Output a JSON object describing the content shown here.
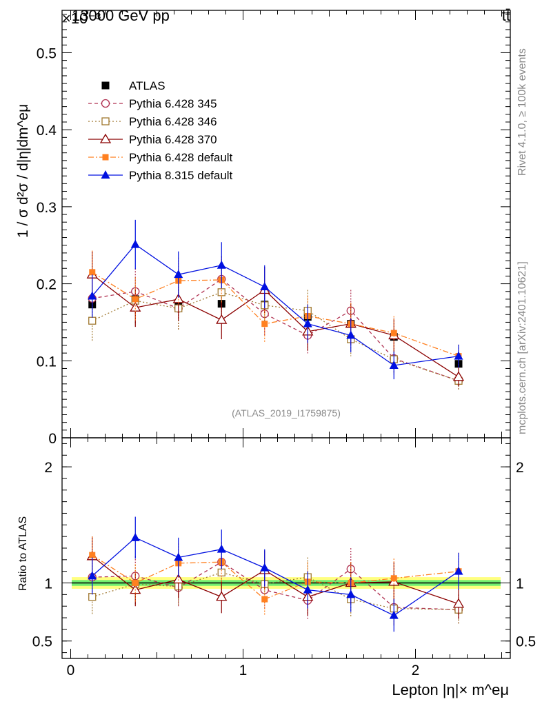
{
  "header": {
    "energy_label": "13000 GeV pp",
    "process_label": "tt̄",
    "exponent_label": "×10⁻³"
  },
  "side_labels": {
    "rivet": "Rivet 4.1.0, ≥ 100k events",
    "mcplots": "mcplots.cern.ch [arXiv:2401.10621]"
  },
  "analysis_label": "(ATLAS_2019_I1759875)",
  "colors": {
    "atlas": "#000000",
    "p345": "#b03050",
    "p346": "#a07830",
    "p370": "#8b0000",
    "p6def": "#ff8020",
    "p8def": "#0010e0",
    "band_outer": "#ffff80",
    "band_inner": "#70ee70"
  },
  "chart_data": [
    {
      "type": "scatter",
      "panel": "main",
      "title": "13000 GeV pp",
      "xlabel": "Lepton |η|× m^eμ",
      "ylabel": "1 / σ  d²σ / d|η|dm^eμ",
      "xlim": [
        -0.05,
        2.55
      ],
      "ylim": [
        0,
        0.555
      ],
      "y_multiplier_label": "×10⁻³",
      "x_ticks": [
        0,
        1,
        2
      ],
      "y_ticks": [
        0.1,
        0.2,
        0.3,
        0.4,
        0.5
      ],
      "y_tick_labels": [
        "0.1",
        "0.2",
        "0.3",
        "0.4",
        "0.5"
      ],
      "y_zero_label": "0",
      "x_tick_labels": [
        "0",
        "1",
        "2"
      ],
      "x": [
        0.125,
        0.375,
        0.625,
        0.875,
        1.125,
        1.375,
        1.625,
        1.875,
        2.25
      ],
      "legend_position": "top-left",
      "series": [
        {
          "name": "ATLAS",
          "key": "atlas",
          "marker": "square-filled",
          "line": "none",
          "values": [
            0.173,
            0.18,
            0.174,
            0.174,
            0.173,
            0.157,
            0.148,
            0.131,
            0.096
          ],
          "errors": [
            0.004,
            0.004,
            0.004,
            0.004,
            0.004,
            0.004,
            0.004,
            0.004,
            0.004
          ]
        },
        {
          "name": "Pythia 6.428 345",
          "key": "p345",
          "marker": "circle-open",
          "line": "dashed",
          "values": [
            0.181,
            0.19,
            0.168,
            0.206,
            0.161,
            0.133,
            0.165,
            0.103,
            0.074
          ],
          "errors": [
            0.03,
            0.03,
            0.028,
            0.03,
            0.028,
            0.025,
            0.027,
            0.02,
            0.012
          ]
        },
        {
          "name": "Pythia 6.428 346",
          "key": "p346",
          "marker": "square-open",
          "line": "dotted",
          "values": [
            0.152,
            0.178,
            0.168,
            0.189,
            0.172,
            0.165,
            0.128,
            0.102,
            0.074
          ],
          "errors": [
            0.026,
            0.03,
            0.028,
            0.03,
            0.028,
            0.027,
            0.022,
            0.02,
            0.012
          ]
        },
        {
          "name": "Pythia 6.428 370",
          "key": "p370",
          "marker": "triangle-open",
          "line": "solid",
          "values": [
            0.212,
            0.169,
            0.18,
            0.153,
            0.192,
            0.138,
            0.148,
            0.133,
            0.079
          ],
          "errors": [
            0.03,
            0.025,
            0.028,
            0.025,
            0.03,
            0.025,
            0.027,
            0.022,
            0.012
          ]
        },
        {
          "name": "Pythia 6.428 default",
          "key": "p6def",
          "marker": "square-filled-small",
          "line": "dashdot",
          "values": [
            0.215,
            0.18,
            0.204,
            0.205,
            0.148,
            0.158,
            0.148,
            0.136,
            0.106
          ],
          "errors": [
            0.028,
            0.028,
            0.03,
            0.03,
            0.025,
            0.026,
            0.027,
            0.022,
            0.015
          ]
        },
        {
          "name": "Pythia 8.315 default",
          "key": "p8def",
          "marker": "triangle-filled",
          "line": "solid",
          "values": [
            0.184,
            0.251,
            0.212,
            0.224,
            0.196,
            0.148,
            0.133,
            0.094,
            0.106
          ],
          "errors": [
            0.028,
            0.032,
            0.03,
            0.03,
            0.028,
            0.025,
            0.022,
            0.018,
            0.015
          ]
        }
      ]
    },
    {
      "type": "scatter",
      "panel": "ratio",
      "ylabel": "Ratio to ATLAS",
      "xlabel": "Lepton |η|× m^eμ",
      "xlim": [
        -0.05,
        2.55
      ],
      "ylim": [
        0.35,
        2.25
      ],
      "y_ticks": [
        0.5,
        1,
        2
      ],
      "y_tick_labels": [
        "0.5",
        "1",
        "2"
      ],
      "x_ticks": [
        0,
        1,
        2
      ],
      "x_tick_labels": [
        "0",
        "1",
        "2"
      ],
      "band_outer": [
        0.95,
        1.05
      ],
      "band_inner": [
        0.975,
        1.025
      ],
      "x": [
        0.125,
        0.375,
        0.625,
        0.875,
        1.125,
        1.375,
        1.625,
        1.875,
        2.25
      ],
      "series": [
        {
          "name": "Pythia 6.428 345",
          "key": "p345",
          "marker": "circle-open",
          "line": "dashed",
          "values": [
            1.05,
            1.06,
            0.96,
            1.18,
            0.94,
            0.85,
            1.12,
            0.79,
            0.77
          ],
          "errors": [
            0.17,
            0.17,
            0.16,
            0.17,
            0.16,
            0.16,
            0.18,
            0.15,
            0.13
          ]
        },
        {
          "name": "Pythia 6.428 346",
          "key": "p346",
          "marker": "square-open",
          "line": "dotted",
          "values": [
            0.88,
            0.99,
            0.97,
            1.09,
            0.99,
            1.05,
            0.86,
            0.78,
            0.77
          ],
          "errors": [
            0.15,
            0.17,
            0.16,
            0.17,
            0.16,
            0.17,
            0.15,
            0.15,
            0.13
          ]
        },
        {
          "name": "Pythia 6.428 370",
          "key": "p370",
          "marker": "triangle-open",
          "line": "solid",
          "values": [
            1.23,
            0.94,
            1.03,
            0.88,
            1.11,
            0.88,
            1.0,
            1.01,
            0.82
          ],
          "errors": [
            0.17,
            0.14,
            0.16,
            0.14,
            0.17,
            0.16,
            0.18,
            0.17,
            0.13
          ]
        },
        {
          "name": "Pythia 6.428 default",
          "key": "p6def",
          "marker": "square-filled-small",
          "line": "dashdot",
          "values": [
            1.24,
            1.0,
            1.17,
            1.18,
            0.86,
            1.01,
            1.0,
            1.04,
            1.1
          ],
          "errors": [
            0.16,
            0.16,
            0.17,
            0.17,
            0.14,
            0.17,
            0.18,
            0.17,
            0.16
          ]
        },
        {
          "name": "Pythia 8.315 default",
          "key": "p8def",
          "marker": "triangle-filled",
          "line": "solid",
          "values": [
            1.06,
            1.39,
            1.22,
            1.29,
            1.13,
            0.94,
            0.9,
            0.72,
            1.1
          ],
          "errors": [
            0.16,
            0.18,
            0.17,
            0.17,
            0.16,
            0.16,
            0.15,
            0.14,
            0.16
          ]
        }
      ]
    }
  ]
}
